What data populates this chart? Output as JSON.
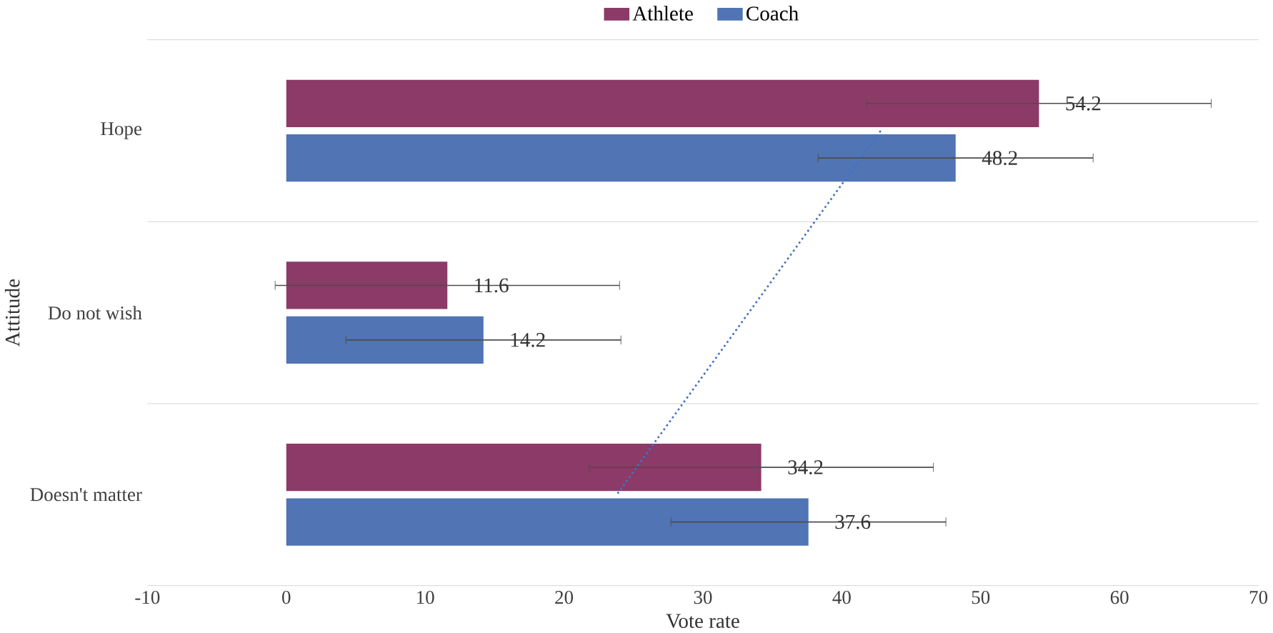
{
  "chart_data": {
    "type": "bar",
    "orientation": "horizontal",
    "xlabel": "Vote rate",
    "ylabel": "Attitude",
    "categories": [
      "Hope",
      "Do not wish",
      "Doesn't matter"
    ],
    "series": [
      {
        "name": "Athlete",
        "color": "#8c3a68",
        "values": [
          54.2,
          11.6,
          34.2
        ],
        "value_labels": [
          "54.2",
          "11.6",
          "34.2"
        ],
        "errors": [
          12.4,
          12.4,
          12.4
        ]
      },
      {
        "name": "Coach",
        "color": "#5074b4",
        "values": [
          48.2,
          14.2,
          37.6
        ],
        "value_labels": [
          "48.2",
          "14.2",
          "37.6"
        ],
        "errors": [
          9.9,
          9.9,
          9.9
        ]
      },
      {
        "type": "line",
        "color": "#4472c4",
        "line_style": "dotted",
        "values": [
          42.8,
          33.3,
          23.8
        ]
      }
    ],
    "xlim": [
      -10,
      70
    ],
    "xticks": [
      -10,
      0,
      10,
      20,
      30,
      40,
      50,
      60,
      70
    ],
    "legend": "top",
    "grid": false
  }
}
